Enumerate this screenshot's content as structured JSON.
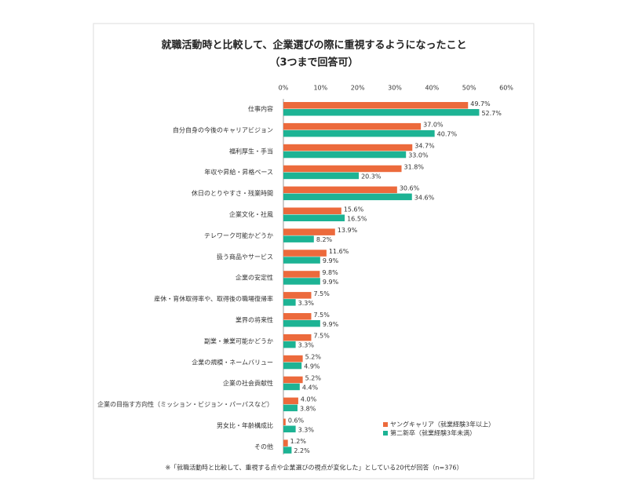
{
  "chart_data": {
    "type": "hbar",
    "title": "就職活動時と比較して、企業選びの際に重視するようになったこと",
    "subtitle": "（3つまで回答可）",
    "categories": [
      "仕事内容",
      "自分自身の今後のキャリアビジョン",
      "福利厚生・手当",
      "年収や昇給・昇格ペース",
      "休日のとりやすさ・残業時間",
      "企業文化・社風",
      "テレワーク可能かどうか",
      "扱う商品やサービス",
      "企業の安定性",
      "産休・育休取得率や、取得後の職場復帰率",
      "業界の将来性",
      "副業・兼業可能かどうか",
      "企業の規模・ネームバリュー",
      "企業の社会貢献性",
      "企業の目指す方向性（ミッション・ビジョン・パーパスなど）",
      "男女比・年齢構成比",
      "その他"
    ],
    "series": [
      {
        "name": "ヤングキャリア（就業経験3年以上）",
        "color": "#ec6a3c",
        "values": [
          49.7,
          37.0,
          34.7,
          31.8,
          30.6,
          15.6,
          13.9,
          11.6,
          9.8,
          7.5,
          7.5,
          7.5,
          5.2,
          5.2,
          4.0,
          0.6,
          1.2
        ],
        "value_labels": [
          "49.7%",
          "37.0%",
          "34.7%",
          "31.8%",
          "30.6%",
          "15.6%",
          "13.9%",
          "11.6%",
          "9.8%",
          "7.5%",
          "7.5%",
          "7.5%",
          "5.2%",
          "5.2%",
          "4.0%",
          "0.6%",
          "1.2%"
        ]
      },
      {
        "name": "第二新卒（就業経験3年未満）",
        "color": "#1db394",
        "values": [
          52.7,
          40.7,
          33.0,
          20.3,
          34.6,
          16.5,
          8.2,
          9.9,
          9.9,
          3.3,
          9.9,
          3.3,
          4.9,
          4.4,
          3.8,
          3.3,
          2.2
        ],
        "value_labels": [
          "52.7%",
          "40.7%",
          "33.0%",
          "20.3%",
          "34.6%",
          "16.5%",
          "8.2%",
          "9.9%",
          "9.9%",
          "3.3%",
          "9.9%",
          "3.3%",
          "4.9%",
          "4.4%",
          "3.8%",
          "3.3%",
          "2.2%"
        ]
      }
    ],
    "xlim": [
      0,
      60
    ],
    "xticks": [
      {
        "value": 0,
        "label": "0%"
      },
      {
        "value": 10,
        "label": "10%"
      },
      {
        "value": 20,
        "label": "20%"
      },
      {
        "value": 30,
        "label": "30%"
      },
      {
        "value": 40,
        "label": "40%"
      },
      {
        "value": 50,
        "label": "50%"
      },
      {
        "value": 60,
        "label": "60%"
      }
    ],
    "grid": false,
    "legend": "lower right",
    "note": "※「就職活動時と比較して、重視する点や企業選びの視点が変化した」としている20代が回答（n=376）"
  }
}
